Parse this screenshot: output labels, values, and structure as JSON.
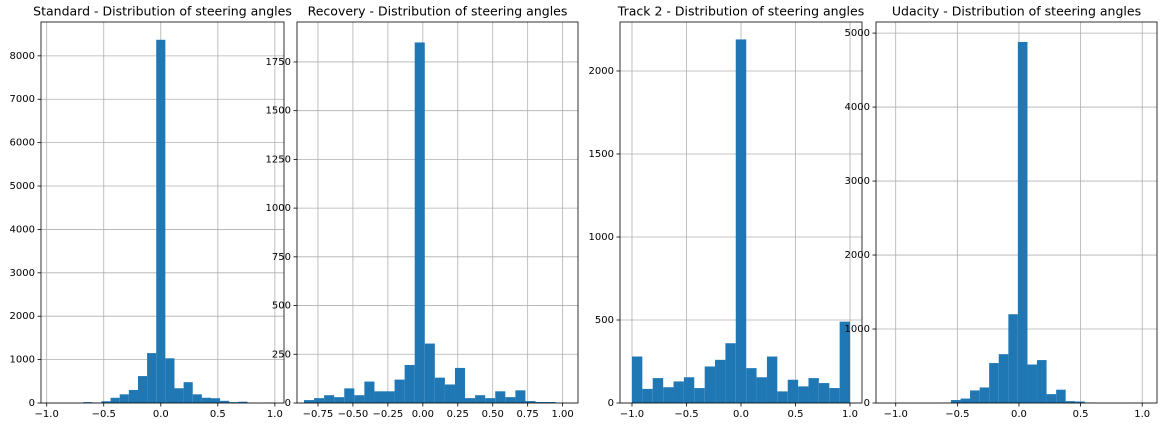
{
  "chart_data": [
    {
      "type": "histogram",
      "title": "Standard - Distribution of steering angles",
      "color": "#1f77b4",
      "grid": true,
      "bins": [
        -1.0,
        -0.92,
        -0.84,
        -0.76,
        -0.68,
        -0.6,
        -0.52,
        -0.44,
        -0.36,
        -0.28,
        -0.2,
        -0.12,
        -0.04,
        0.04,
        0.12,
        0.2,
        0.28,
        0.36,
        0.44,
        0.52,
        0.6,
        0.68,
        0.76,
        0.84,
        0.92,
        1.0
      ],
      "values": [
        0,
        0,
        0,
        0,
        20,
        10,
        40,
        120,
        200,
        300,
        620,
        1150,
        8370,
        1030,
        340,
        480,
        200,
        120,
        110,
        50,
        20,
        30,
        5,
        0,
        10
      ],
      "xlim": [
        -1.05,
        1.08
      ],
      "ylim": [
        0,
        8780
      ],
      "xticks": [
        {
          "value": -1.0,
          "label": "−1.0"
        },
        {
          "value": -0.5,
          "label": "−0.5"
        },
        {
          "value": 0,
          "label": "0.0"
        },
        0.5,
        {
          "value": 1.0,
          "label": "1.0"
        }
      ],
      "yticks": [
        0,
        1000,
        2000,
        3000,
        4000,
        5000,
        6000,
        7000,
        8000
      ]
    },
    {
      "type": "histogram",
      "title": "Recovery - Distribution of steering angles",
      "color": "#1f77b4",
      "grid": true,
      "bins": [
        -0.85,
        -0.778,
        -0.706,
        -0.634,
        -0.562,
        -0.49,
        -0.418,
        -0.346,
        -0.274,
        -0.202,
        -0.13,
        -0.058,
        0.014,
        0.086,
        0.158,
        0.23,
        0.302,
        0.374,
        0.446,
        0.518,
        0.59,
        0.662,
        0.734,
        0.806,
        0.878,
        0.95
      ],
      "values": [
        15,
        25,
        40,
        30,
        75,
        40,
        110,
        60,
        60,
        120,
        195,
        1850,
        305,
        130,
        95,
        180,
        25,
        40,
        25,
        60,
        30,
        65,
        10,
        5,
        5
      ],
      "xlim": [
        -0.9,
        1.11
      ],
      "ylim": [
        0,
        1955
      ],
      "xticks": [
        {
          "value": -0.75,
          "label": "−0.75"
        },
        {
          "value": -0.5,
          "label": "−0.50"
        },
        {
          "value": -0.25,
          "label": "−0.25"
        },
        {
          "value": 0,
          "label": "0.00"
        },
        0.25,
        {
          "value": 0.5,
          "label": "0.50"
        },
        0.75,
        {
          "value": 1.0,
          "label": "1.00"
        }
      ],
      "yticks": [
        0,
        250,
        500,
        750,
        1000,
        1250,
        1500,
        1750
      ]
    },
    {
      "type": "histogram",
      "title": "Track 2 - Distribution of steering angles",
      "color": "#1f77b4",
      "grid": true,
      "bins": [
        -1.0,
        -0.905,
        -0.81,
        -0.714,
        -0.619,
        -0.524,
        -0.429,
        -0.333,
        -0.238,
        -0.143,
        -0.048,
        0.048,
        0.143,
        0.238,
        0.333,
        0.429,
        0.524,
        0.619,
        0.714,
        0.81,
        0.905,
        1.0
      ],
      "values": [
        280,
        85,
        150,
        95,
        130,
        155,
        90,
        220,
        260,
        360,
        2190,
        210,
        155,
        280,
        70,
        140,
        100,
        150,
        120,
        90,
        490
      ],
      "xlim": [
        -1.11,
        1.11
      ],
      "ylim": [
        0,
        2295
      ],
      "xticks": [
        {
          "value": -1.0,
          "label": "−1.0"
        },
        {
          "value": -0.5,
          "label": "−0.5"
        },
        {
          "value": 0,
          "label": "0.0"
        },
        0.5,
        {
          "value": 1.0,
          "label": "1.0"
        }
      ],
      "yticks": [
        0,
        500,
        1000,
        1500,
        2000
      ]
    },
    {
      "type": "histogram",
      "title": "Udacity - Distribution of steering angles",
      "color": "#1f77b4",
      "grid": true,
      "bins": [
        -0.94,
        -0.862,
        -0.785,
        -0.707,
        -0.63,
        -0.552,
        -0.474,
        -0.397,
        -0.319,
        -0.242,
        -0.164,
        -0.086,
        -0.009,
        0.069,
        0.146,
        0.224,
        0.302,
        0.379,
        0.457,
        0.534,
        0.612,
        0.69,
        0.767,
        0.845,
        0.922,
        1.0
      ],
      "values": [
        0,
        0,
        0,
        0,
        3,
        40,
        60,
        170,
        210,
        540,
        660,
        1200,
        4880,
        520,
        580,
        120,
        180,
        25,
        20,
        5,
        0,
        0,
        0,
        0,
        3
      ],
      "xlim": [
        -1.16,
        1.12
      ],
      "ylim": [
        0,
        5150
      ],
      "xticks": [
        {
          "value": -1.0,
          "label": "−1.0"
        },
        {
          "value": -0.5,
          "label": "−0.5"
        },
        {
          "value": 0,
          "label": "0.0"
        },
        0.5,
        {
          "value": 1.0,
          "label": "1.0"
        }
      ],
      "yticks": [
        0,
        1000,
        2000,
        3000,
        4000,
        5000
      ]
    }
  ]
}
